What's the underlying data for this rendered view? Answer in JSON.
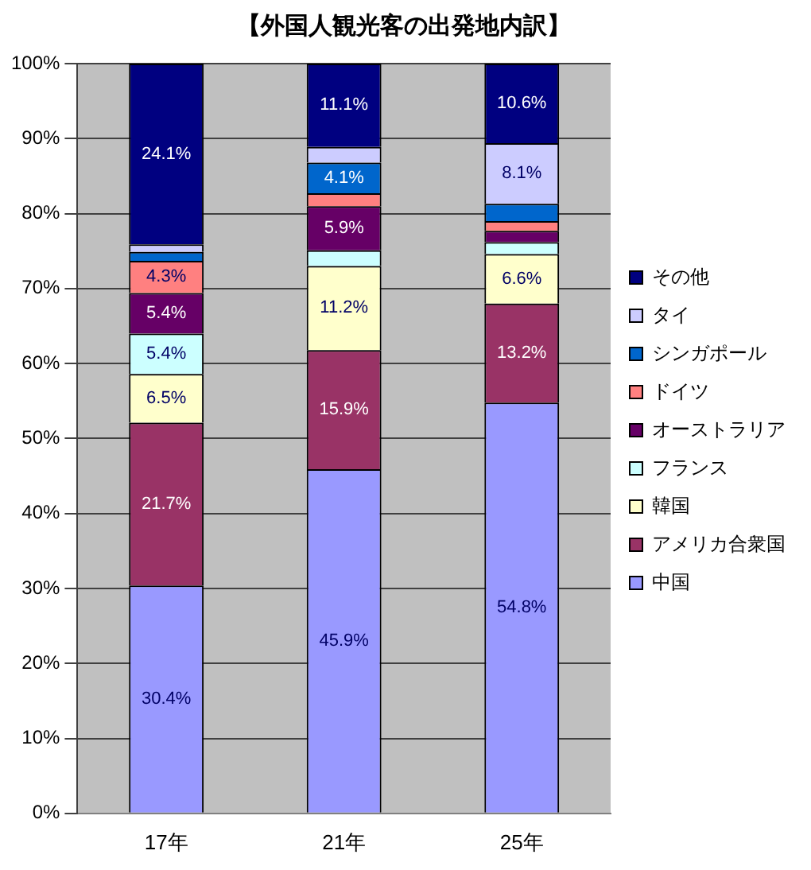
{
  "chart_data": {
    "type": "bar",
    "title": "【外国人観光客の出発地内訳】",
    "stacked": true,
    "categories": [
      "17年",
      "21年",
      "25年"
    ],
    "series": [
      {
        "name": "中国",
        "color": "#9999ff",
        "values": [
          30.4,
          45.9,
          54.8
        ],
        "value_labels": [
          "30.4%",
          "45.9%",
          "54.8%"
        ]
      },
      {
        "name": "アメリカ合衆国",
        "color": "#993366",
        "values": [
          21.7,
          15.9,
          13.2
        ],
        "value_labels": [
          "21.7%",
          "15.9%",
          "13.2%"
        ]
      },
      {
        "name": "韓国",
        "color": "#ffffcc",
        "values": [
          6.5,
          11.2,
          6.6
        ],
        "value_labels": [
          "6.5%",
          "11.2%",
          "6.6%"
        ]
      },
      {
        "name": "フランス",
        "color": "#ccffff",
        "values": [
          5.4,
          2.1,
          1.6
        ],
        "value_labels": [
          "5.4%",
          null,
          null
        ]
      },
      {
        "name": "オーストラリア",
        "color": "#660066",
        "values": [
          5.4,
          5.9,
          1.5
        ],
        "value_labels": [
          "5.4%",
          "5.9%",
          null
        ]
      },
      {
        "name": "ドイツ",
        "color": "#ff8080",
        "values": [
          4.3,
          1.7,
          1.3
        ],
        "value_labels": [
          "4.3%",
          null,
          null
        ]
      },
      {
        "name": "シンガポール",
        "color": "#0066cc",
        "values": [
          1.2,
          4.1,
          2.3
        ],
        "value_labels": [
          null,
          "4.1%",
          null
        ]
      },
      {
        "name": "タイ",
        "color": "#ccccff",
        "values": [
          1.0,
          2.1,
          8.1
        ],
        "value_labels": [
          null,
          null,
          "8.1%"
        ]
      },
      {
        "name": "その他",
        "color": "#000080",
        "values": [
          24.1,
          11.1,
          10.6
        ],
        "value_labels": [
          "24.1%",
          "11.1%",
          "10.6%"
        ]
      }
    ],
    "ylim": [
      0,
      100
    ],
    "yticks": [
      {
        "value": 0,
        "label": "0%"
      },
      {
        "value": 10,
        "label": "10%"
      },
      {
        "value": 20,
        "label": "20%"
      },
      {
        "value": 30,
        "label": "30%"
      },
      {
        "value": 40,
        "label": "40%"
      },
      {
        "value": 50,
        "label": "50%"
      },
      {
        "value": 60,
        "label": "60%"
      },
      {
        "value": 70,
        "label": "70%"
      },
      {
        "value": 80,
        "label": "80%"
      },
      {
        "value": 90,
        "label": "90%"
      },
      {
        "value": 100,
        "label": "100%"
      }
    ],
    "grid": "y",
    "legend": "right"
  }
}
